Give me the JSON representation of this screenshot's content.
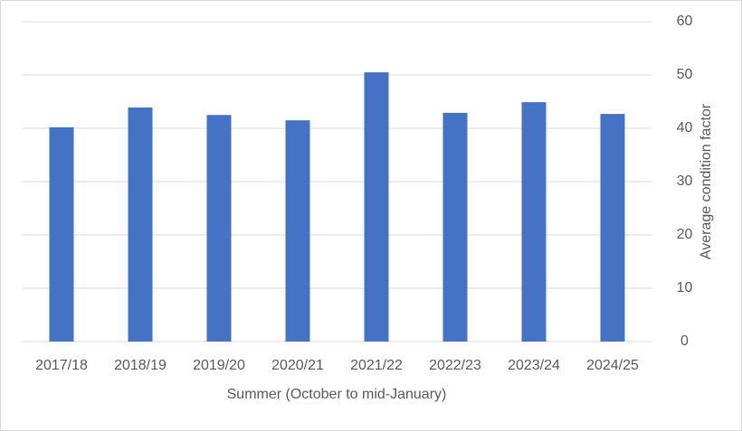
{
  "chart_data": {
    "type": "bar",
    "x_label": "Summer (October to mid-January)",
    "y_label": "Average condition factor",
    "categories": [
      "2017/18",
      "2018/19",
      "2019/20",
      "2020/21",
      "2021/22",
      "2022/23",
      "2023/24",
      "2024/25"
    ],
    "values": [
      40.2,
      43.9,
      42.5,
      41.5,
      50.5,
      42.9,
      44.9,
      42.7
    ],
    "color": "#4472c4",
    "ylim": [
      0,
      60
    ],
    "yticks": [
      0,
      10,
      20,
      30,
      40,
      50,
      60
    ],
    "y_axis_side": "right",
    "grid": true
  }
}
